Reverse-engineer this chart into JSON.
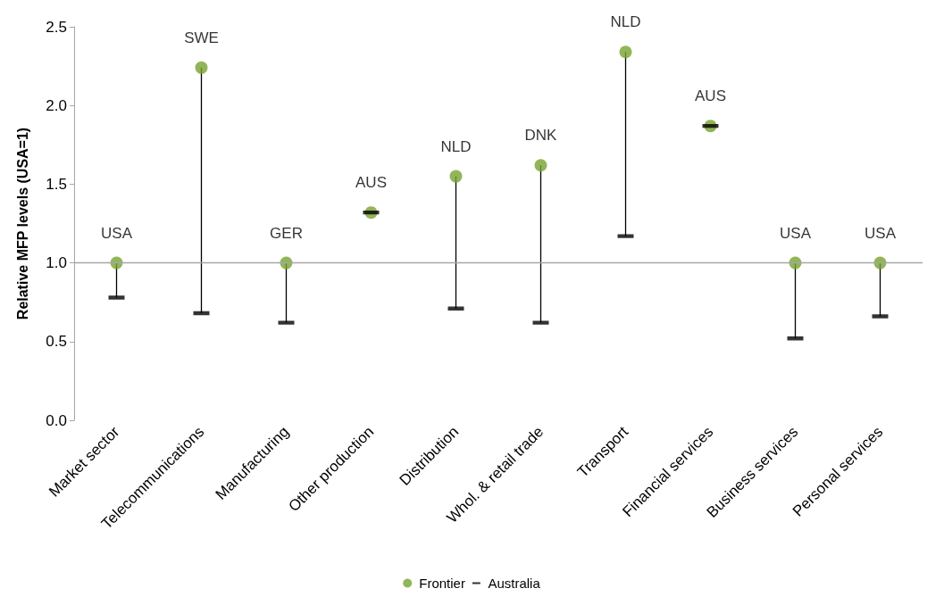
{
  "chart_data": {
    "type": "scatter",
    "ylabel": "Relative MFP levels (USA=1)",
    "categories": [
      "Market sector",
      "Telecommunications",
      "Manufacturing",
      "Other production",
      "Distribution",
      "Whol. & retail trade",
      "Transport",
      "Financial services",
      "Business services",
      "Personal services"
    ],
    "series": [
      {
        "name": "Frontier",
        "color": "#77a22f",
        "marker": "circle",
        "values": [
          1.0,
          2.24,
          1.0,
          1.32,
          1.55,
          1.62,
          2.34,
          1.87,
          1.0,
          1.0
        ],
        "value_labels": [
          "USA",
          "SWE",
          "GER",
          "AUS",
          "NLD",
          "DNK",
          "NLD",
          "AUS",
          "USA",
          "USA"
        ]
      },
      {
        "name": "Australia",
        "color": "#000000",
        "values": [
          0.78,
          0.68,
          0.62,
          1.32,
          0.71,
          0.62,
          1.17,
          1.87,
          0.52,
          0.66
        ]
      }
    ],
    "ylim": [
      0,
      2.5
    ],
    "yticks": [
      {
        "value": 0,
        "label": "0.0"
      },
      {
        "value": 0.5,
        "label": "0.5"
      },
      {
        "value": 1,
        "label": "1.0"
      },
      {
        "value": 1.5,
        "label": "1.5"
      },
      {
        "value": 2,
        "label": "2.0"
      },
      {
        "value": 2.5,
        "label": "2.5"
      }
    ],
    "ref_lines": [
      {
        "axis": "y",
        "value": 1,
        "color": "#a6a6a6"
      }
    ],
    "grid": false,
    "legend": "bottom"
  }
}
